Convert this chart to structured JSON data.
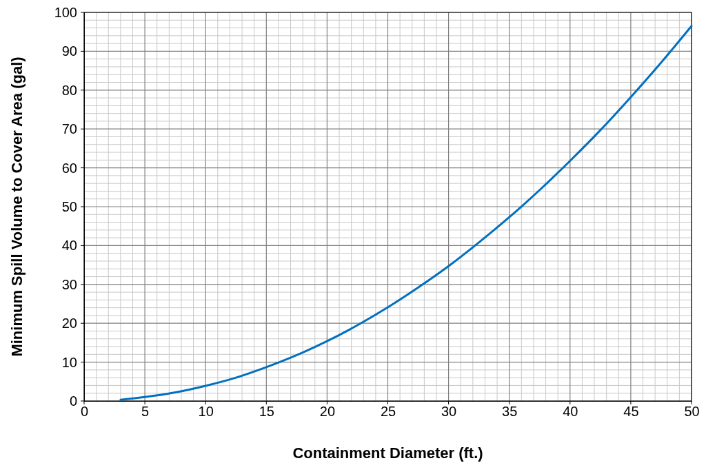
{
  "chart_data": {
    "type": "line",
    "xlabel": "Containment Diameter (ft.)",
    "ylabel": "Minimum Spill Volume to Cover Area (gal)",
    "series": [
      {
        "color": "#0070c0",
        "x": [
          3,
          5,
          7.5,
          10,
          12.5,
          15,
          17.5,
          20,
          22.5,
          25,
          27.5,
          30,
          32.5,
          35,
          37.5,
          40,
          42.5,
          45,
          47.5,
          50
        ],
        "values": [
          0.3,
          1.0,
          2.2,
          3.9,
          6.0,
          8.7,
          11.8,
          15.4,
          19.5,
          24.1,
          29.2,
          34.7,
          40.8,
          47.3,
          54.3,
          61.8,
          69.7,
          78.2,
          87.1,
          96.5
        ]
      }
    ],
    "xlim": [
      0,
      50
    ],
    "ylim": [
      0,
      100
    ],
    "xticks": [
      0,
      {
        "value": 1,
        "label": null
      },
      {
        "value": 2,
        "label": null
      },
      {
        "value": 3,
        "label": null
      },
      {
        "value": 4,
        "label": null
      },
      5,
      {
        "value": 6,
        "label": null
      },
      {
        "value": 7,
        "label": null
      },
      {
        "value": 8,
        "label": null
      },
      {
        "value": 9,
        "label": null
      },
      10,
      {
        "value": 11,
        "label": null
      },
      {
        "value": 12,
        "label": null
      },
      {
        "value": 13,
        "label": null
      },
      {
        "value": 14,
        "label": null
      },
      15,
      {
        "value": 16,
        "label": null
      },
      {
        "value": 17,
        "label": null
      },
      {
        "value": 18,
        "label": null
      },
      {
        "value": 19,
        "label": null
      },
      20,
      {
        "value": 21,
        "label": null
      },
      {
        "value": 22,
        "label": null
      },
      {
        "value": 23,
        "label": null
      },
      {
        "value": 24,
        "label": null
      },
      25,
      {
        "value": 26,
        "label": null
      },
      {
        "value": 27,
        "label": null
      },
      {
        "value": 28,
        "label": null
      },
      {
        "value": 29,
        "label": null
      },
      30,
      {
        "value": 31,
        "label": null
      },
      {
        "value": 32,
        "label": null
      },
      {
        "value": 33,
        "label": null
      },
      {
        "value": 34,
        "label": null
      },
      35,
      {
        "value": 36,
        "label": null
      },
      {
        "value": 37,
        "label": null
      },
      {
        "value": 38,
        "label": null
      },
      {
        "value": 39,
        "label": null
      },
      40,
      {
        "value": 41,
        "label": null
      },
      {
        "value": 42,
        "label": null
      },
      {
        "value": 43,
        "label": null
      },
      {
        "value": 44,
        "label": null
      },
      45,
      {
        "value": 46,
        "label": null
      },
      {
        "value": 47,
        "label": null
      },
      {
        "value": 48,
        "label": null
      },
      {
        "value": 49,
        "label": null
      },
      50
    ],
    "yticks": [
      0,
      {
        "value": 2,
        "label": null
      },
      {
        "value": 4,
        "label": null
      },
      {
        "value": 6,
        "label": null
      },
      {
        "value": 8,
        "label": null
      },
      10,
      {
        "value": 12,
        "label": null
      },
      {
        "value": 14,
        "label": null
      },
      {
        "value": 16,
        "label": null
      },
      {
        "value": 18,
        "label": null
      },
      20,
      {
        "value": 22,
        "label": null
      },
      {
        "value": 24,
        "label": null
      },
      {
        "value": 26,
        "label": null
      },
      {
        "value": 28,
        "label": null
      },
      30,
      {
        "value": 32,
        "label": null
      },
      {
        "value": 34,
        "label": null
      },
      {
        "value": 36,
        "label": null
      },
      {
        "value": 38,
        "label": null
      },
      40,
      {
        "value": 42,
        "label": null
      },
      {
        "value": 44,
        "label": null
      },
      {
        "value": 46,
        "label": null
      },
      {
        "value": 48,
        "label": null
      },
      50,
      {
        "value": 52,
        "label": null
      },
      {
        "value": 54,
        "label": null
      },
      {
        "value": 56,
        "label": null
      },
      {
        "value": 58,
        "label": null
      },
      60,
      {
        "value": 62,
        "label": null
      },
      {
        "value": 64,
        "label": null
      },
      {
        "value": 66,
        "label": null
      },
      {
        "value": 68,
        "label": null
      },
      70,
      {
        "value": 72,
        "label": null
      },
      {
        "value": 74,
        "label": null
      },
      {
        "value": 76,
        "label": null
      },
      {
        "value": 78,
        "label": null
      },
      80,
      {
        "value": 82,
        "label": null
      },
      {
        "value": 84,
        "label": null
      },
      {
        "value": 86,
        "label": null
      },
      {
        "value": 88,
        "label": null
      },
      90,
      {
        "value": 92,
        "label": null
      },
      {
        "value": 94,
        "label": null
      },
      {
        "value": 96,
        "label": null
      },
      {
        "value": 98,
        "label": null
      },
      100
    ],
    "grid": true,
    "marker": "none",
    "line_style": "solid"
  }
}
